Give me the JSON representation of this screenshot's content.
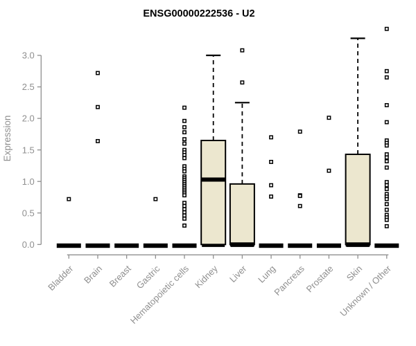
{
  "title": "ENSG00000222536 - U2",
  "colors": {
    "box_fill": "#ece7cf",
    "box_stroke": "#000000",
    "median": "#000000",
    "axis": "#8f8f8f",
    "outlier_fill": "#ffffff",
    "title": "#000000",
    "background": "#ffffff"
  },
  "chart_data": {
    "type": "boxplot",
    "title": "ENSG00000222536 - U2",
    "xlabel": "",
    "ylabel": "Expression",
    "ylim": [
      0,
      3.45
    ],
    "grid": false,
    "legend": "none",
    "yticks": [
      0,
      0.5,
      1,
      1.5,
      2,
      2.5,
      3
    ],
    "ytick_labels": [
      "0.0",
      "0.5",
      "1.0",
      "1.5",
      "2.0",
      "2.5",
      "3.0"
    ],
    "categories": [
      "Bladder",
      "Brain",
      "Breast",
      "Gastric",
      "Hematopoietic cells",
      "Kidney",
      "Liver",
      "Lung",
      "Pancreas",
      "Prostate",
      "Skin",
      "Unknown / Other"
    ],
    "boxes": [
      {
        "label": "Bladder",
        "q1": 0,
        "median": 0,
        "q3": 0,
        "whisker_low": 0,
        "whisker_high": 0,
        "outliers": [
          0.72
        ]
      },
      {
        "label": "Brain",
        "q1": 0,
        "median": 0,
        "q3": 0,
        "whisker_low": 0,
        "whisker_high": 0,
        "outliers": [
          2.72,
          2.18,
          1.64
        ]
      },
      {
        "label": "Breast",
        "q1": 0,
        "median": 0,
        "q3": 0,
        "whisker_low": 0,
        "whisker_high": 0,
        "outliers": []
      },
      {
        "label": "Gastric",
        "q1": 0,
        "median": 0,
        "q3": 0,
        "whisker_low": 0,
        "whisker_high": 0,
        "outliers": [
          0.72
        ]
      },
      {
        "label": "Hematopoietic cells",
        "q1": 0,
        "median": 0,
        "q3": 0,
        "whisker_low": 0,
        "whisker_high": 0,
        "outliers": [
          2.17,
          1.96,
          1.86,
          1.78,
          1.67,
          1.6,
          1.5,
          1.46,
          1.42,
          1.37,
          1.24,
          1.2,
          1.16,
          1.08,
          1.05,
          1.02,
          0.99,
          0.96,
          0.93,
          0.9,
          0.87,
          0.84,
          0.81,
          0.78,
          0.66,
          0.61,
          0.56,
          0.51,
          0.46,
          0.41,
          0.3
        ]
      },
      {
        "label": "Kidney",
        "q1": 0,
        "median": 1.03,
        "q3": 1.65,
        "whisker_low": 0,
        "whisker_high": 3.0,
        "outliers": []
      },
      {
        "label": "Liver",
        "q1": 0,
        "median": 0,
        "q3": 0.96,
        "whisker_low": 0,
        "whisker_high": 2.25,
        "outliers": [
          3.08,
          2.57
        ]
      },
      {
        "label": "Lung",
        "q1": 0,
        "median": 0,
        "q3": 0,
        "whisker_low": 0,
        "whisker_high": 0,
        "outliers": [
          1.7,
          1.31,
          0.94,
          0.76
        ]
      },
      {
        "label": "Pancreas",
        "q1": 0,
        "median": 0,
        "q3": 0,
        "whisker_low": 0,
        "whisker_high": 0,
        "outliers": [
          1.79,
          0.78,
          0.77,
          0.61
        ]
      },
      {
        "label": "Prostate",
        "q1": 0,
        "median": 0,
        "q3": 0,
        "whisker_low": 0,
        "whisker_high": 0,
        "outliers": [
          2.01,
          1.17
        ]
      },
      {
        "label": "Skin",
        "q1": 0,
        "median": 0,
        "q3": 1.43,
        "whisker_low": 0,
        "whisker_high": 3.27,
        "outliers": []
      },
      {
        "label": "Unknown / Other",
        "q1": 0,
        "median": 0,
        "q3": 0,
        "whisker_low": 0,
        "whisker_high": 0,
        "outliers": [
          3.42,
          2.75,
          2.65,
          2.21,
          1.94,
          1.65,
          1.61,
          1.57,
          1.43,
          1.38,
          1.32,
          1.22,
          0.99,
          0.94,
          0.88,
          0.8,
          0.76,
          0.72,
          0.64,
          0.55,
          0.47,
          0.43,
          0.39,
          0.29
        ]
      }
    ]
  }
}
